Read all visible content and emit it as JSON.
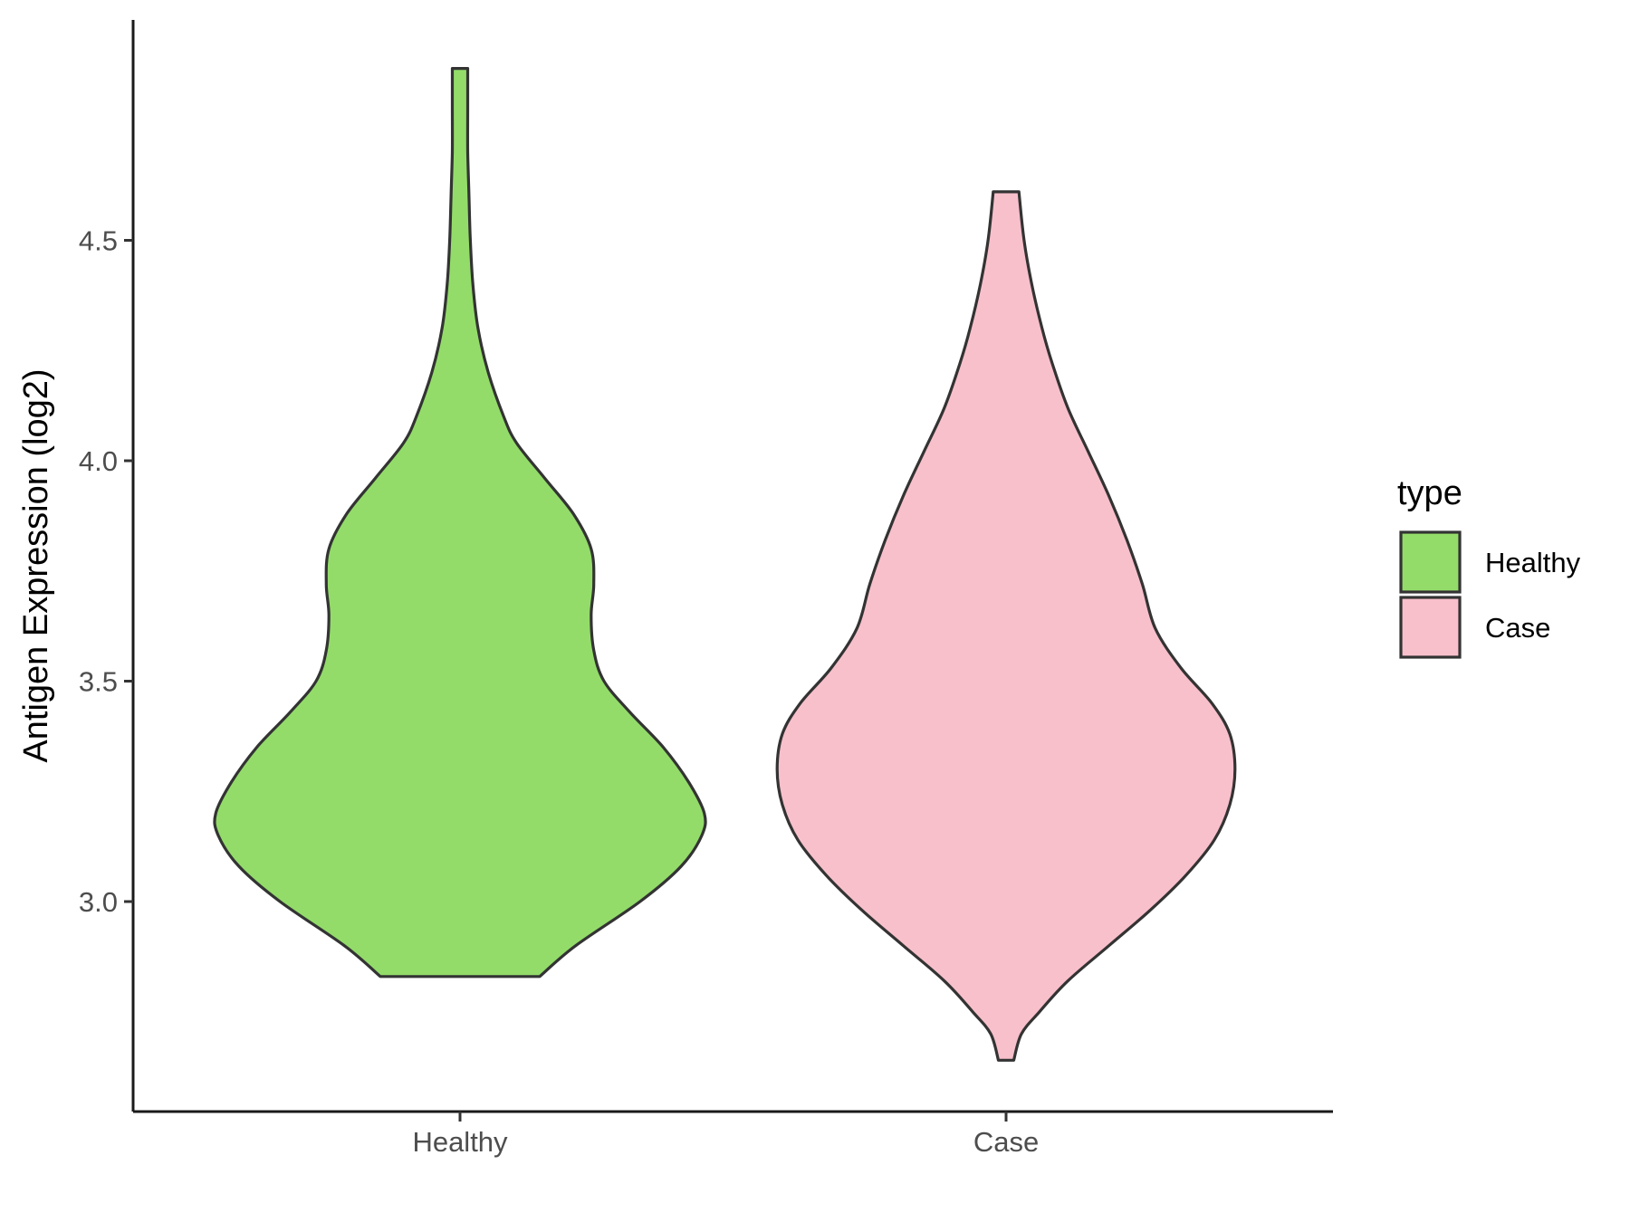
{
  "chart_data": {
    "type": "violin",
    "title": "",
    "xlabel": "",
    "ylabel": "Antigen Expression (log2)",
    "ylim": [
      2.53,
      5.0
    ],
    "yticks": [
      3.0,
      3.5,
      4.0,
      4.5
    ],
    "ytick_labels": [
      "3.0",
      "3.5",
      "4.0",
      "4.5"
    ],
    "categories": [
      "Healthy",
      "Case"
    ],
    "grid": false,
    "legend": {
      "title": "type",
      "position": "right",
      "entries": [
        {
          "label": "Healthy",
          "color": "#93DC6A"
        },
        {
          "label": "Case",
          "color": "#F8C0CB"
        }
      ]
    },
    "series": [
      {
        "name": "Healthy",
        "color": "#93DC6A",
        "y_min": 2.83,
        "y_max": 4.89,
        "density_profile": [
          [
            2.83,
            0.31
          ],
          [
            2.9,
            0.45
          ],
          [
            3.0,
            0.7
          ],
          [
            3.08,
            0.86
          ],
          [
            3.15,
            0.94
          ],
          [
            3.2,
            0.95
          ],
          [
            3.27,
            0.89
          ],
          [
            3.35,
            0.79
          ],
          [
            3.43,
            0.66
          ],
          [
            3.5,
            0.56
          ],
          [
            3.57,
            0.52
          ],
          [
            3.65,
            0.51
          ],
          [
            3.72,
            0.52
          ],
          [
            3.8,
            0.51
          ],
          [
            3.88,
            0.44
          ],
          [
            3.96,
            0.33
          ],
          [
            4.04,
            0.22
          ],
          [
            4.1,
            0.17
          ],
          [
            4.2,
            0.11
          ],
          [
            4.3,
            0.07
          ],
          [
            4.4,
            0.05
          ],
          [
            4.5,
            0.04
          ],
          [
            4.6,
            0.035
          ],
          [
            4.7,
            0.03
          ],
          [
            4.8,
            0.03
          ],
          [
            4.89,
            0.03
          ]
        ]
      },
      {
        "name": "Case",
        "color": "#F8C0CB",
        "y_min": 2.64,
        "y_max": 4.61,
        "density_profile": [
          [
            2.64,
            0.03
          ],
          [
            2.7,
            0.06
          ],
          [
            2.75,
            0.13
          ],
          [
            2.82,
            0.24
          ],
          [
            2.9,
            0.4
          ],
          [
            2.98,
            0.56
          ],
          [
            3.06,
            0.7
          ],
          [
            3.14,
            0.81
          ],
          [
            3.22,
            0.87
          ],
          [
            3.3,
            0.89
          ],
          [
            3.38,
            0.87
          ],
          [
            3.45,
            0.8
          ],
          [
            3.53,
            0.68
          ],
          [
            3.62,
            0.58
          ],
          [
            3.72,
            0.53
          ],
          [
            3.82,
            0.47
          ],
          [
            3.92,
            0.4
          ],
          [
            4.02,
            0.32
          ],
          [
            4.12,
            0.24
          ],
          [
            4.22,
            0.18
          ],
          [
            4.3,
            0.14
          ],
          [
            4.4,
            0.1
          ],
          [
            4.5,
            0.07
          ],
          [
            4.61,
            0.05
          ]
        ]
      }
    ]
  }
}
